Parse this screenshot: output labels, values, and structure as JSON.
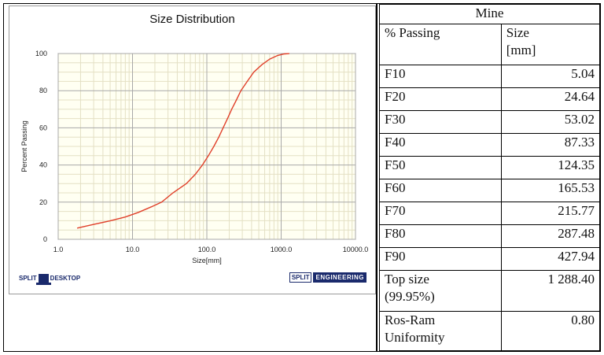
{
  "chart_data": {
    "type": "line",
    "title": "Size Distribution",
    "xlabel": "Size[mm]",
    "ylabel": "Percent Passing",
    "x_scale": "log",
    "xlim": [
      1.0,
      10000.0
    ],
    "ylim": [
      0,
      100
    ],
    "x_ticks": [
      "1.0",
      "10.0",
      "100.0",
      "1000.0",
      "10000.0"
    ],
    "y_ticks": [
      "0",
      "20",
      "40",
      "60",
      "80",
      "100"
    ],
    "grid": true,
    "line_color": "#e0402a",
    "x": [
      1.8,
      3,
      5.04,
      8,
      12,
      18,
      24.64,
      35,
      53.02,
      70,
      87.33,
      105,
      124.35,
      145,
      165.53,
      190,
      215.77,
      250,
      287.48,
      350,
      427.94,
      550,
      700,
      900,
      1100,
      1288.4
    ],
    "y": [
      6,
      8,
      10,
      12,
      14.5,
      17.5,
      20,
      25,
      30,
      35,
      40,
      45,
      50,
      55,
      60,
      65,
      70,
      75,
      80,
      85,
      90,
      94,
      97,
      99,
      99.8,
      99.95
    ]
  },
  "logos": {
    "left": [
      "SPLIT",
      "DESKTOP"
    ],
    "right": [
      "SPLIT",
      "ENGINEERING"
    ]
  },
  "table": {
    "title": "Mine",
    "col1": "% Passing",
    "col2_line1": "Size",
    "col2_line2": "[mm]",
    "rows": [
      {
        "label": "F10",
        "value": "5.04"
      },
      {
        "label": "F20",
        "value": "24.64"
      },
      {
        "label": "F30",
        "value": "53.02"
      },
      {
        "label": "F40",
        "value": "87.33"
      },
      {
        "label": "F50",
        "value": "124.35"
      },
      {
        "label": "F60",
        "value": "165.53"
      },
      {
        "label": "F70",
        "value": "215.77"
      },
      {
        "label": "F80",
        "value": "287.48"
      },
      {
        "label": "F90",
        "value": "427.94"
      }
    ],
    "top_size_line1": "Top size",
    "top_size_line2": "(99.95%)",
    "top_size_value": "1 288.40",
    "ros_ram_line1": "Ros-Ram",
    "ros_ram_line2": "Uniformity",
    "ros_ram_value": "0.80"
  }
}
